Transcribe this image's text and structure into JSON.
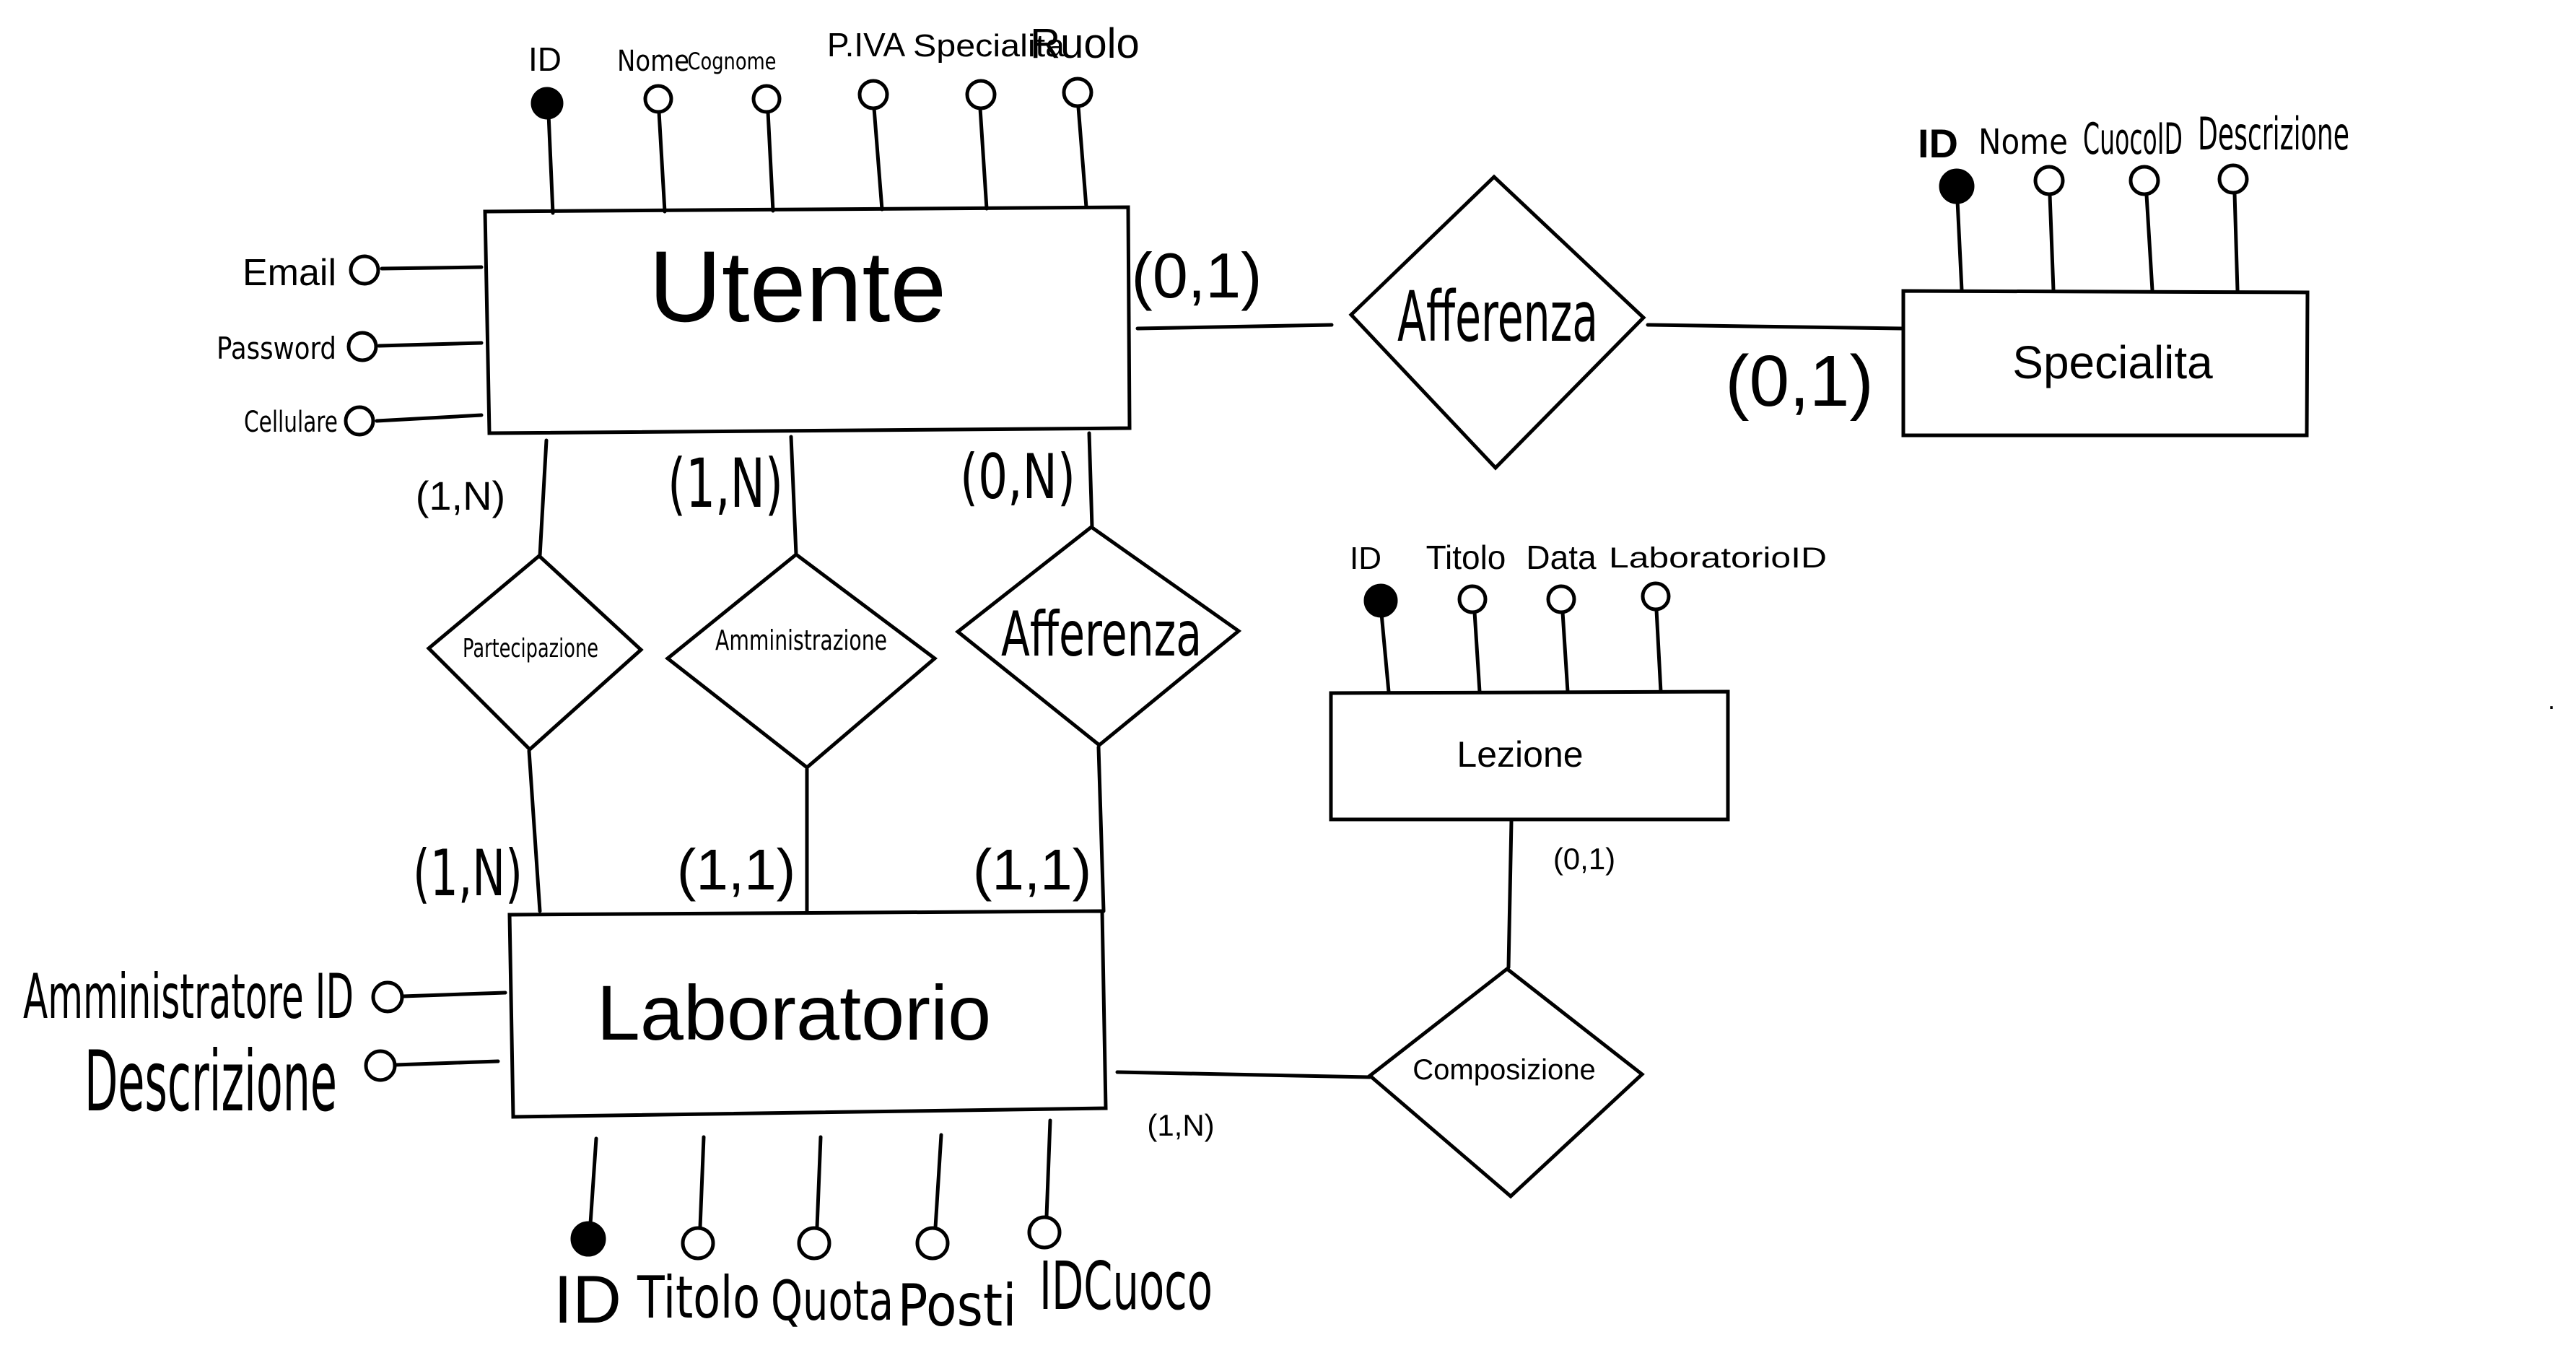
{
  "entities": {
    "utente": {
      "name": "Utente",
      "attributes": {
        "top": [
          {
            "label": "ID",
            "key": true
          },
          {
            "label": "Nome",
            "key": false
          },
          {
            "label": "Cognome",
            "key": false
          },
          {
            "label": "P.IVA",
            "key": false
          },
          {
            "label": "Specialita",
            "key": false
          },
          {
            "label": "Ruolo",
            "key": false
          }
        ],
        "left": [
          {
            "label": "Email",
            "key": false
          },
          {
            "label": "Password",
            "key": false
          },
          {
            "label": "Cellulare",
            "key": false
          }
        ]
      }
    },
    "specialita": {
      "name": "Specialita",
      "attributes": [
        {
          "label": "ID",
          "key": true
        },
        {
          "label": "Nome",
          "key": false
        },
        {
          "label": "CuocoID",
          "key": false
        },
        {
          "label": "Descrizione",
          "key": false
        }
      ]
    },
    "lezione": {
      "name": "Lezione",
      "attributes": [
        {
          "label": "ID",
          "key": true
        },
        {
          "label": "Titolo",
          "key": false
        },
        {
          "label": "Data",
          "key": false
        },
        {
          "label": "LaboratorioID",
          "key": false
        }
      ]
    },
    "laboratorio": {
      "name": "Laboratorio",
      "attributes": {
        "left": [
          {
            "label": "Amministratore ID",
            "key": false
          },
          {
            "label": "Descrizione",
            "key": false
          }
        ],
        "bottom": [
          {
            "label": "ID",
            "key": true
          },
          {
            "label": "Titolo",
            "key": false
          },
          {
            "label": "Quota",
            "key": false
          },
          {
            "label": "Posti",
            "key": false
          },
          {
            "label": "IDCuoco",
            "key": false
          }
        ]
      }
    }
  },
  "relationships": {
    "afferenza_specialita": {
      "name": "Afferenza",
      "between": [
        "Utente",
        "Specialita"
      ],
      "cardinalities": {
        "utente": "(0,1)",
        "specialita": "(0,1)"
      }
    },
    "partecipazione": {
      "name": "Partecipazione",
      "between": [
        "Utente",
        "Laboratorio"
      ],
      "cardinalities": {
        "utente": "(1,N)",
        "laboratorio": "(1,N)"
      }
    },
    "amministrazione": {
      "name": "Amministrazione",
      "between": [
        "Utente",
        "Laboratorio"
      ],
      "cardinalities": {
        "utente": "(1,N)",
        "laboratorio": "(1,1)"
      }
    },
    "afferenza_laboratorio": {
      "name": "Afferenza",
      "between": [
        "Utente",
        "Laboratorio"
      ],
      "cardinalities": {
        "utente": "(0,N)",
        "laboratorio": "(1,1)"
      }
    },
    "composizione": {
      "name": "Composizione",
      "between": [
        "Laboratorio",
        "Lezione"
      ],
      "cardinalities": {
        "laboratorio": "(1,N)",
        "lezione": "(0,1)"
      }
    }
  },
  "stray_mark": "."
}
